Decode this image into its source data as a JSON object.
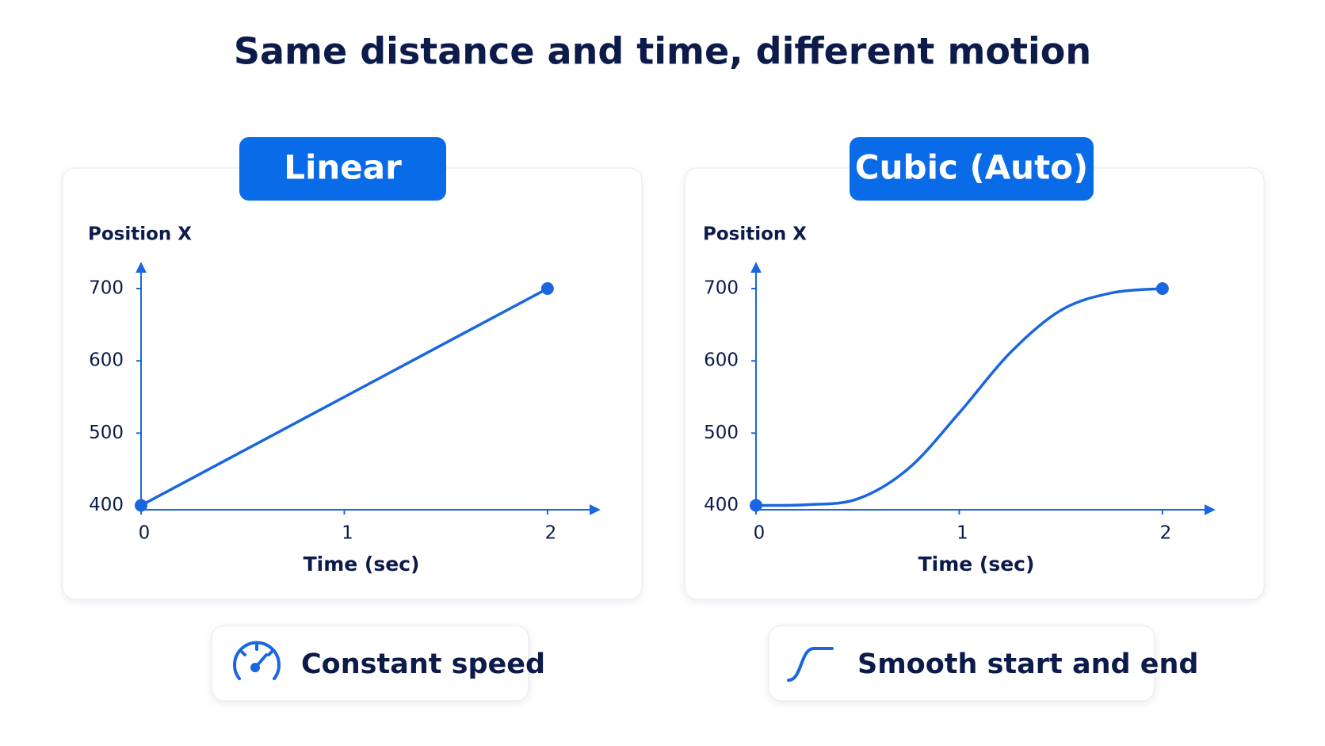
{
  "title": "Same distance and time, different motion",
  "chart_data": [
    {
      "type": "line",
      "title": "Linear",
      "y_label": "Position X",
      "x_label": "Time (sec)",
      "caption": "Constant speed",
      "x": [
        0,
        2
      ],
      "series": [
        {
          "color": "#1a66e0",
          "values": [
            400,
            700
          ]
        }
      ],
      "xlim": [
        0,
        2.25
      ],
      "ylim": [
        394,
        734
      ],
      "xticks": [
        0,
        1,
        2
      ],
      "yticks": [
        400,
        500,
        600,
        700
      ]
    },
    {
      "type": "line",
      "title": "Cubic (Auto)",
      "y_label": "Position X",
      "x_label": "Time (sec)",
      "caption": "Smooth start and end",
      "x": [
        0,
        0.25,
        0.5,
        0.75,
        1,
        1.25,
        1.5,
        1.75,
        2
      ],
      "series": [
        {
          "color": "#1a66e0",
          "values": [
            400,
            401,
            409,
            451,
            528,
            611,
            670,
            694,
            700
          ]
        }
      ],
      "xlim": [
        0,
        2.25
      ],
      "ylim": [
        394,
        734
      ],
      "xticks": [
        0,
        1,
        2
      ],
      "yticks": [
        400,
        500,
        600,
        700
      ]
    }
  ]
}
